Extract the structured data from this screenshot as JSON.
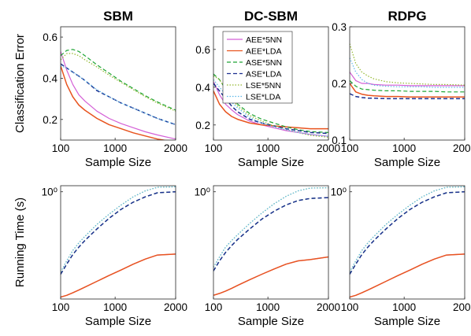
{
  "colors": {
    "AEE*5NN": "#d45fd6",
    "AEE*LDA": "#e8541f",
    "ASE*5NN": "#1fa535",
    "ASE*LDA": "#1b2f8f",
    "LSE*5NN": "#93b82e",
    "LSE*LDA": "#5bb8e8"
  },
  "line_styles": {
    "AEE*5NN": "solid",
    "AEE*LDA": "solid",
    "ASE*5NN": "dashed",
    "ASE*LDA": "dashed",
    "LSE*5NN": "dotted",
    "LSE*LDA": "dotted"
  },
  "legend": [
    "AEE*5NN",
    "AEE*LDA",
    "ASE*5NN",
    "ASE*LDA",
    "LSE*5NN",
    "LSE*LDA"
  ],
  "legend_placement": "top-right of DC-SBM error panel",
  "chart_data": [
    {
      "type": "line",
      "title": "SBM",
      "xlabel": "Sample Size",
      "ylabel": "Classification Error",
      "xlim": [
        100,
        2000
      ],
      "ylim": [
        0.1,
        0.65
      ],
      "yscale": "linear",
      "xticks": [
        "100",
        "1000",
        "2000"
      ],
      "xtickvals": [
        100,
        1000,
        2000
      ],
      "yticks": [
        "0.2",
        "0.4",
        "0.6"
      ],
      "ytickvals": [
        0.2,
        0.4,
        0.6
      ],
      "x": [
        100,
        200,
        300,
        400,
        500,
        700,
        900,
        1100,
        1300,
        1500,
        1700,
        2000
      ],
      "series": [
        {
          "name": "AEE*5NN",
          "values": [
            0.53,
            0.44,
            0.37,
            0.32,
            0.29,
            0.24,
            0.205,
            0.18,
            0.16,
            0.14,
            0.125,
            0.105
          ]
        },
        {
          "name": "AEE*LDA",
          "values": [
            0.46,
            0.37,
            0.31,
            0.27,
            0.245,
            0.205,
            0.175,
            0.155,
            0.135,
            0.12,
            0.105,
            0.09
          ]
        },
        {
          "name": "ASE*5NN",
          "values": [
            0.51,
            0.535,
            0.54,
            0.53,
            0.51,
            0.465,
            0.425,
            0.385,
            0.35,
            0.315,
            0.285,
            0.245
          ]
        },
        {
          "name": "ASE*LDA",
          "values": [
            0.47,
            0.45,
            0.43,
            0.41,
            0.39,
            0.34,
            0.31,
            0.28,
            0.255,
            0.23,
            0.205,
            0.175
          ]
        },
        {
          "name": "LSE*5NN",
          "values": [
            0.49,
            0.52,
            0.52,
            0.51,
            0.49,
            0.455,
            0.415,
            0.38,
            0.345,
            0.31,
            0.28,
            0.24
          ]
        },
        {
          "name": "LSE*LDA",
          "values": [
            0.46,
            0.45,
            0.43,
            0.41,
            0.39,
            0.345,
            0.31,
            0.28,
            0.255,
            0.23,
            0.205,
            0.175
          ]
        }
      ]
    },
    {
      "type": "line",
      "title": "DC-SBM",
      "xlabel": "Sample Size",
      "ylabel": "",
      "xlim": [
        100,
        2000
      ],
      "ylim": [
        0.12,
        0.72
      ],
      "yscale": "linear",
      "xticks": [
        "100",
        "1000",
        "2000"
      ],
      "xtickvals": [
        100,
        1000,
        2000
      ],
      "yticks": [
        "0.2",
        "0.4",
        "0.6"
      ],
      "ytickvals": [
        0.2,
        0.4,
        0.6
      ],
      "x": [
        100,
        200,
        300,
        400,
        500,
        700,
        900,
        1100,
        1300,
        1500,
        1700,
        2000
      ],
      "series": [
        {
          "name": "AEE*5NN",
          "values": [
            0.43,
            0.36,
            0.31,
            0.28,
            0.255,
            0.22,
            0.2,
            0.185,
            0.17,
            0.16,
            0.15,
            0.14
          ]
        },
        {
          "name": "AEE*LDA",
          "values": [
            0.38,
            0.31,
            0.27,
            0.245,
            0.23,
            0.21,
            0.2,
            0.195,
            0.19,
            0.185,
            0.18,
            0.18
          ]
        },
        {
          "name": "ASE*5NN",
          "values": [
            0.47,
            0.44,
            0.39,
            0.35,
            0.31,
            0.26,
            0.23,
            0.21,
            0.19,
            0.175,
            0.165,
            0.16
          ]
        },
        {
          "name": "ASE*LDA",
          "values": [
            0.42,
            0.38,
            0.34,
            0.3,
            0.27,
            0.23,
            0.21,
            0.195,
            0.18,
            0.17,
            0.16,
            0.155
          ]
        },
        {
          "name": "LSE*5NN",
          "values": [
            0.46,
            0.44,
            0.39,
            0.34,
            0.3,
            0.25,
            0.22,
            0.195,
            0.175,
            0.16,
            0.145,
            0.135
          ]
        },
        {
          "name": "LSE*LDA",
          "values": [
            0.44,
            0.4,
            0.36,
            0.32,
            0.29,
            0.24,
            0.21,
            0.19,
            0.175,
            0.16,
            0.15,
            0.14
          ]
        }
      ]
    },
    {
      "type": "line",
      "title": "RDPG",
      "xlabel": "Sample Size",
      "ylabel": "",
      "xlim": [
        100,
        2000
      ],
      "ylim": [
        0.1,
        0.3
      ],
      "yscale": "linear",
      "xticks": [
        "100",
        "1000",
        "2000"
      ],
      "xtickvals": [
        100,
        1000,
        2000
      ],
      "yticks": [
        "0.1",
        "0.2",
        "0.3"
      ],
      "ytickvals": [
        0.1,
        0.2,
        0.3
      ],
      "x": [
        100,
        200,
        300,
        400,
        500,
        700,
        900,
        1100,
        1300,
        1500,
        1700,
        2000
      ],
      "series": [
        {
          "name": "AEE*5NN",
          "values": [
            0.22,
            0.205,
            0.2,
            0.2,
            0.198,
            0.197,
            0.197,
            0.196,
            0.196,
            0.196,
            0.196,
            0.196
          ]
        },
        {
          "name": "AEE*LDA",
          "values": [
            0.2,
            0.185,
            0.181,
            0.179,
            0.178,
            0.177,
            0.177,
            0.176,
            0.176,
            0.176,
            0.176,
            0.176
          ]
        },
        {
          "name": "ASE*5NN",
          "values": [
            0.205,
            0.195,
            0.19,
            0.189,
            0.188,
            0.187,
            0.187,
            0.186,
            0.186,
            0.186,
            0.185,
            0.185
          ]
        },
        {
          "name": "ASE*LDA",
          "values": [
            0.182,
            0.177,
            0.175,
            0.174,
            0.174,
            0.173,
            0.173,
            0.173,
            0.173,
            0.173,
            0.173,
            0.173
          ]
        },
        {
          "name": "LSE*5NN",
          "values": [
            0.27,
            0.235,
            0.22,
            0.213,
            0.208,
            0.203,
            0.201,
            0.2,
            0.199,
            0.198,
            0.198,
            0.197
          ]
        },
        {
          "name": "LSE*LDA",
          "values": [
            0.245,
            0.22,
            0.207,
            0.2,
            0.197,
            0.195,
            0.194,
            0.194,
            0.194,
            0.193,
            0.193,
            0.193
          ]
        }
      ]
    },
    {
      "type": "line",
      "title": "",
      "xlabel": "Sample Size",
      "ylabel": "Running Time (s)",
      "xlim": [
        100,
        2000
      ],
      "ylim": [
        0.005,
        1.35
      ],
      "yscale": "log",
      "xticks": [
        "100",
        "1000",
        "2000"
      ],
      "xtickvals": [
        100,
        1000,
        2000
      ],
      "yticks": [
        "10⁰"
      ],
      "ytickvals": [
        1
      ],
      "x": [
        100,
        200,
        300,
        400,
        500,
        700,
        900,
        1100,
        1300,
        1500,
        1700,
        2000
      ],
      "series": [
        {
          "name": "AEE*5NN",
          "values": [
            0.0055,
            0.006,
            0.0068,
            0.0078,
            0.009,
            0.012,
            0.016,
            0.021,
            0.028,
            0.036,
            0.044,
            0.046
          ]
        },
        {
          "name": "AEE*LDA",
          "values": [
            0.0055,
            0.006,
            0.0068,
            0.0078,
            0.009,
            0.012,
            0.016,
            0.021,
            0.028,
            0.036,
            0.044,
            0.046
          ]
        },
        {
          "name": "ASE*5NN",
          "values": [
            0.017,
            0.028,
            0.045,
            0.065,
            0.09,
            0.16,
            0.27,
            0.42,
            0.6,
            0.78,
            0.95,
            1.0
          ]
        },
        {
          "name": "ASE*LDA",
          "values": [
            0.017,
            0.028,
            0.045,
            0.065,
            0.09,
            0.16,
            0.27,
            0.42,
            0.6,
            0.78,
            0.95,
            1.0
          ]
        },
        {
          "name": "LSE*5NN",
          "values": [
            0.019,
            0.033,
            0.055,
            0.08,
            0.11,
            0.2,
            0.33,
            0.52,
            0.78,
            1.05,
            1.25,
            1.28
          ]
        },
        {
          "name": "LSE*LDA",
          "values": [
            0.019,
            0.033,
            0.055,
            0.08,
            0.11,
            0.2,
            0.33,
            0.52,
            0.78,
            1.05,
            1.25,
            1.28
          ]
        }
      ]
    },
    {
      "type": "line",
      "title": "",
      "xlabel": "Sample Size",
      "ylabel": "",
      "xlim": [
        100,
        2000
      ],
      "ylim": [
        0.005,
        1.35
      ],
      "yscale": "log",
      "xticks": [
        "100",
        "1000",
        "2000"
      ],
      "xtickvals": [
        100,
        1000,
        2000
      ],
      "yticks": [
        "10⁰"
      ],
      "ytickvals": [
        1
      ],
      "x": [
        100,
        200,
        300,
        400,
        500,
        700,
        900,
        1100,
        1300,
        1500,
        1700,
        2000
      ],
      "series": [
        {
          "name": "AEE*5NN",
          "values": [
            0.006,
            0.0066,
            0.0074,
            0.0085,
            0.0098,
            0.013,
            0.017,
            0.022,
            0.028,
            0.033,
            0.035,
            0.04
          ]
        },
        {
          "name": "AEE*LDA",
          "values": [
            0.006,
            0.0066,
            0.0074,
            0.0085,
            0.0098,
            0.013,
            0.017,
            0.022,
            0.028,
            0.033,
            0.035,
            0.04
          ]
        },
        {
          "name": "ASE*5NN",
          "values": [
            0.02,
            0.033,
            0.05,
            0.07,
            0.095,
            0.16,
            0.26,
            0.38,
            0.52,
            0.65,
            0.72,
            0.75
          ]
        },
        {
          "name": "ASE*LDA",
          "values": [
            0.02,
            0.033,
            0.05,
            0.07,
            0.095,
            0.16,
            0.26,
            0.38,
            0.52,
            0.65,
            0.72,
            0.75
          ]
        },
        {
          "name": "LSE*5NN",
          "values": [
            0.024,
            0.04,
            0.065,
            0.09,
            0.12,
            0.21,
            0.35,
            0.55,
            0.8,
            1.05,
            1.2,
            1.22
          ]
        },
        {
          "name": "LSE*LDA",
          "values": [
            0.024,
            0.04,
            0.065,
            0.09,
            0.12,
            0.21,
            0.35,
            0.55,
            0.8,
            1.05,
            1.2,
            1.22
          ]
        }
      ]
    },
    {
      "type": "line",
      "title": "",
      "xlabel": "Sample Size",
      "ylabel": "",
      "xlim": [
        100,
        2000
      ],
      "ylim": [
        0.005,
        1.35
      ],
      "yscale": "log",
      "xticks": [
        "100",
        "1000",
        "2000"
      ],
      "xtickvals": [
        100,
        1000,
        2000
      ],
      "yticks": [
        "10⁰"
      ],
      "ytickvals": [
        1
      ],
      "x": [
        100,
        200,
        300,
        400,
        500,
        700,
        900,
        1100,
        1300,
        1500,
        1700,
        2000
      ],
      "series": [
        {
          "name": "AEE*5NN",
          "values": [
            0.0055,
            0.006,
            0.0068,
            0.0078,
            0.009,
            0.012,
            0.016,
            0.021,
            0.028,
            0.036,
            0.044,
            0.046
          ]
        },
        {
          "name": "AEE*LDA",
          "values": [
            0.0055,
            0.006,
            0.0068,
            0.0078,
            0.009,
            0.012,
            0.016,
            0.021,
            0.028,
            0.036,
            0.044,
            0.046
          ]
        },
        {
          "name": "ASE*5NN",
          "values": [
            0.017,
            0.028,
            0.045,
            0.065,
            0.09,
            0.16,
            0.27,
            0.42,
            0.6,
            0.78,
            0.95,
            1.0
          ]
        },
        {
          "name": "ASE*LDA",
          "values": [
            0.017,
            0.028,
            0.045,
            0.065,
            0.09,
            0.16,
            0.27,
            0.42,
            0.6,
            0.78,
            0.95,
            1.0
          ]
        },
        {
          "name": "LSE*5NN",
          "values": [
            0.019,
            0.033,
            0.055,
            0.08,
            0.11,
            0.2,
            0.33,
            0.52,
            0.78,
            1.05,
            1.25,
            1.28
          ]
        },
        {
          "name": "LSE*LDA",
          "values": [
            0.019,
            0.033,
            0.055,
            0.08,
            0.11,
            0.2,
            0.33,
            0.52,
            0.78,
            1.05,
            1.25,
            1.28
          ]
        }
      ]
    }
  ]
}
